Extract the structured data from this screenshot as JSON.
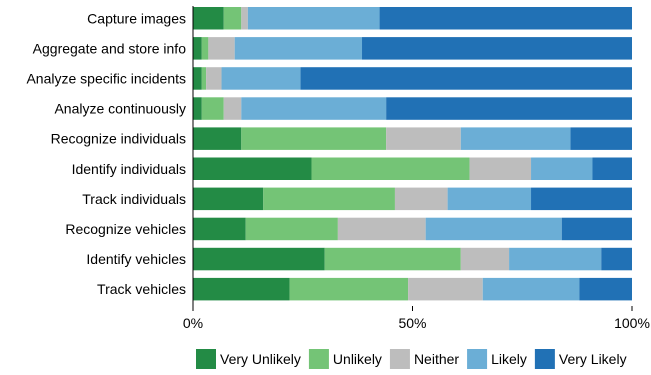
{
  "chart_data": {
    "type": "bar",
    "orientation": "horizontal",
    "stacked": true,
    "normalized": true,
    "title": "",
    "xlabel": "",
    "ylabel": "",
    "xlim": [
      0,
      100
    ],
    "categories": [
      "Capture images",
      "Aggregate and store info",
      "Analyze specific incidents",
      "Analyze continuously",
      "Recognize individuals",
      "Identify individuals",
      "Track individuals",
      "Recognize vehicles",
      "Identify vehicles",
      "Track vehicles"
    ],
    "series": [
      {
        "name": "Very Unlikely",
        "color": "#238b45",
        "values": [
          7,
          2,
          2,
          2,
          11,
          27,
          16,
          12,
          30,
          22
        ]
      },
      {
        "name": "Unlikely",
        "color": "#74c476",
        "values": [
          4,
          1.5,
          1,
          5,
          33,
          36,
          30,
          21,
          31,
          27
        ]
      },
      {
        "name": "Neither",
        "color": "#bdbdbd",
        "values": [
          1.5,
          6,
          3.5,
          4,
          17,
          14,
          12,
          20,
          11,
          17
        ]
      },
      {
        "name": "Likely",
        "color": "#6baed6",
        "values": [
          30,
          29,
          18,
          33,
          25,
          14,
          19,
          31,
          21,
          22
        ]
      },
      {
        "name": "Very Likely",
        "color": "#2171b5",
        "values": [
          57.5,
          61.5,
          75.5,
          56,
          14,
          9,
          23,
          16,
          7,
          12
        ]
      }
    ],
    "x_ticks": [
      "0%",
      "50%",
      "100%"
    ],
    "legend_position": "bottom",
    "grid": false
  }
}
